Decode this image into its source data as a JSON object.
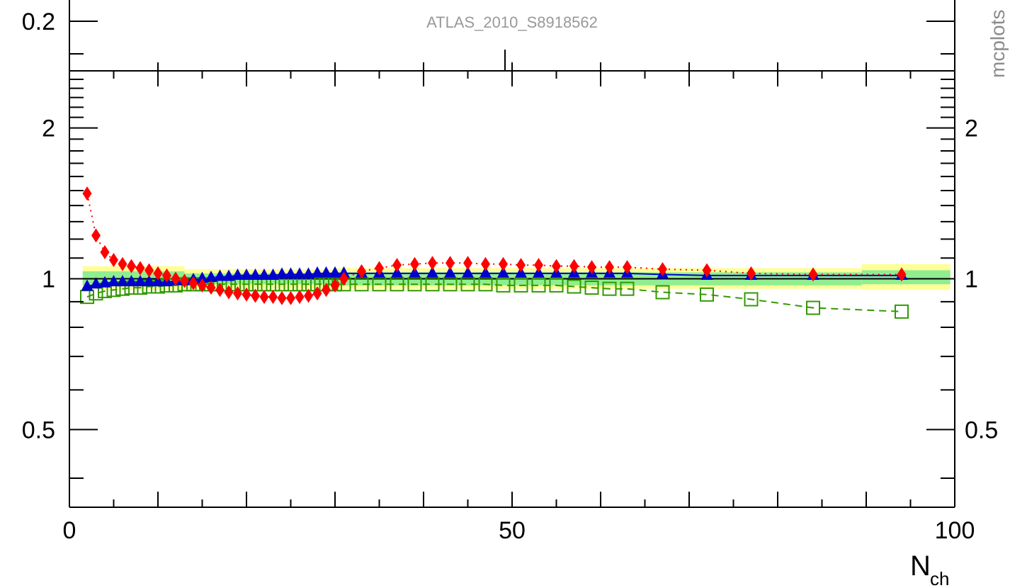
{
  "upper_panel": {
    "tick_label": "0.2",
    "watermark": "ATLAS_2010_S8918562"
  },
  "side_text": "mcplots",
  "chart_data": {
    "type": "scatter",
    "title": "",
    "xlabel": "N",
    "xlabel_sub": "ch",
    "ylabel": "",
    "xlim": [
      0,
      100
    ],
    "ylim": [
      0.35,
      2.6
    ],
    "y_scale": "log",
    "x_tick_labels": [
      "0",
      "50",
      "100"
    ],
    "y_tick_labels": [
      "0.5",
      "1",
      "2"
    ],
    "x_major_ticks": [
      0,
      10,
      20,
      30,
      40,
      50,
      60,
      70,
      80,
      90,
      100
    ],
    "y_major_ticks": [
      0.5,
      1,
      2
    ],
    "reference_line": 1,
    "colors": {
      "band_outer": "#ffff99",
      "band_inner": "#90ee90",
      "data_line": "#000000",
      "red_series": "#ff0000",
      "blue_series": "#0000cc",
      "green_series": "#339900"
    },
    "bands": [
      {
        "x0": 1.5,
        "x1": 13,
        "inner": [
          0.97,
          1.035
        ],
        "outer": [
          0.95,
          1.06
        ]
      },
      {
        "x0": 13,
        "x1": 30,
        "inner": [
          0.975,
          1.025
        ],
        "outer": [
          0.955,
          1.045
        ]
      },
      {
        "x0": 30,
        "x1": 89.5,
        "inner": [
          0.97,
          1.03
        ],
        "outer": [
          0.955,
          1.05
        ]
      },
      {
        "x0": 89.5,
        "x1": 99.5,
        "inner": [
          0.975,
          1.04
        ],
        "outer": [
          0.95,
          1.07
        ]
      }
    ],
    "series": [
      {
        "marker": "diamond",
        "line": "dotted",
        "x": [
          2,
          3,
          4,
          5,
          6,
          7,
          8,
          9,
          10,
          11,
          12,
          13,
          14,
          15,
          16,
          17,
          18,
          19,
          20,
          21,
          22,
          23,
          24,
          25,
          26,
          27,
          28,
          29,
          30,
          31,
          33,
          35,
          37,
          39,
          41,
          43,
          45,
          47,
          49,
          51,
          53,
          55,
          57,
          59,
          61,
          63,
          67,
          72,
          77,
          84,
          94
        ],
        "values": [
          1.48,
          1.22,
          1.13,
          1.09,
          1.07,
          1.06,
          1.05,
          1.04,
          1.025,
          1.015,
          1.0,
          0.99,
          0.98,
          0.97,
          0.96,
          0.95,
          0.94,
          0.935,
          0.93,
          0.925,
          0.92,
          0.92,
          0.915,
          0.915,
          0.92,
          0.925,
          0.935,
          0.95,
          0.97,
          1.0,
          1.035,
          1.05,
          1.065,
          1.07,
          1.075,
          1.075,
          1.075,
          1.07,
          1.07,
          1.065,
          1.065,
          1.06,
          1.06,
          1.055,
          1.055,
          1.055,
          1.045,
          1.04,
          1.025,
          1.02,
          1.02
        ]
      },
      {
        "marker": "triangle",
        "line": "solid",
        "x": [
          2,
          3,
          4,
          5,
          6,
          7,
          8,
          9,
          10,
          11,
          12,
          13,
          14,
          15,
          16,
          17,
          18,
          19,
          20,
          21,
          22,
          23,
          24,
          25,
          26,
          27,
          28,
          29,
          30,
          31,
          33,
          35,
          37,
          39,
          41,
          43,
          45,
          47,
          49,
          51,
          53,
          55,
          57,
          59,
          61,
          63,
          67,
          72,
          77,
          84,
          94
        ],
        "values": [
          0.965,
          0.975,
          0.98,
          0.985,
          0.985,
          0.985,
          0.985,
          0.985,
          0.985,
          0.985,
          0.99,
          0.99,
          0.995,
          1.0,
          1.005,
          1.01,
          1.01,
          1.015,
          1.015,
          1.015,
          1.015,
          1.015,
          1.02,
          1.02,
          1.02,
          1.02,
          1.025,
          1.025,
          1.025,
          1.025,
          1.025,
          1.025,
          1.025,
          1.025,
          1.025,
          1.025,
          1.025,
          1.025,
          1.025,
          1.025,
          1.025,
          1.025,
          1.025,
          1.025,
          1.025,
          1.025,
          1.02,
          1.015,
          1.015,
          1.015,
          1.015
        ]
      },
      {
        "marker": "open-square",
        "line": "dashed",
        "x": [
          2,
          3,
          4,
          5,
          6,
          7,
          8,
          9,
          10,
          11,
          12,
          13,
          14,
          15,
          16,
          17,
          18,
          19,
          20,
          21,
          22,
          23,
          24,
          25,
          26,
          27,
          28,
          29,
          30,
          31,
          33,
          35,
          37,
          39,
          41,
          43,
          45,
          47,
          49,
          51,
          53,
          55,
          57,
          59,
          61,
          63,
          67,
          72,
          77,
          84,
          94
        ],
        "values": [
          0.92,
          0.935,
          0.945,
          0.95,
          0.955,
          0.96,
          0.96,
          0.965,
          0.965,
          0.97,
          0.97,
          0.975,
          0.975,
          0.975,
          0.975,
          0.975,
          0.975,
          0.975,
          0.975,
          0.975,
          0.975,
          0.975,
          0.975,
          0.975,
          0.975,
          0.975,
          0.975,
          0.975,
          0.975,
          0.975,
          0.975,
          0.975,
          0.975,
          0.975,
          0.975,
          0.975,
          0.975,
          0.975,
          0.97,
          0.97,
          0.97,
          0.97,
          0.965,
          0.96,
          0.955,
          0.955,
          0.94,
          0.93,
          0.91,
          0.875,
          0.86
        ]
      }
    ]
  }
}
